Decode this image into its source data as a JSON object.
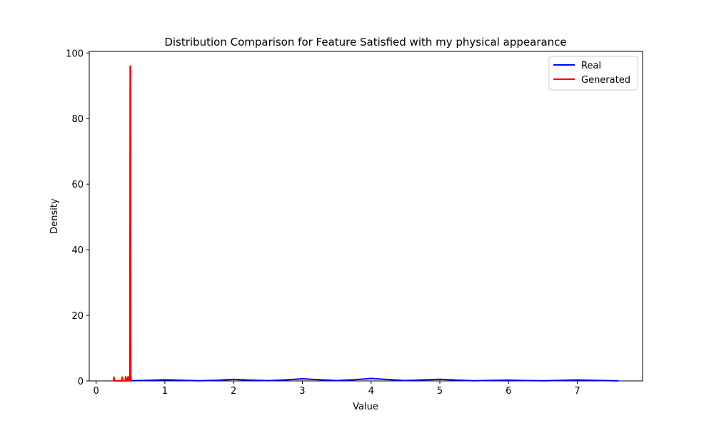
{
  "chart_data": {
    "type": "line",
    "title": "Distribution Comparison for Feature Satisfied with my physical appearance",
    "xlabel": "Value",
    "ylabel": "Density",
    "xlim": [
      -0.1,
      7.95
    ],
    "ylim": [
      0,
      100.5
    ],
    "xticks": [
      0,
      1,
      2,
      3,
      4,
      5,
      6,
      7
    ],
    "yticks": [
      0,
      20,
      40,
      60,
      80,
      100
    ],
    "grid": false,
    "legend_position": "top-right",
    "series": [
      {
        "name": "Real",
        "color": "#0000ff",
        "x": [
          0.5,
          0.75,
          1.0,
          1.25,
          1.5,
          1.75,
          2.0,
          2.25,
          2.5,
          2.75,
          3.0,
          3.25,
          3.5,
          3.75,
          4.0,
          4.25,
          4.5,
          4.75,
          5.0,
          5.25,
          5.5,
          5.75,
          6.0,
          6.25,
          6.5,
          6.75,
          7.0,
          7.25,
          7.6
        ],
        "y": [
          0.05,
          0.15,
          0.35,
          0.2,
          0.05,
          0.2,
          0.45,
          0.25,
          0.08,
          0.3,
          0.65,
          0.35,
          0.1,
          0.35,
          0.75,
          0.4,
          0.1,
          0.3,
          0.5,
          0.25,
          0.06,
          0.15,
          0.25,
          0.12,
          0.05,
          0.15,
          0.3,
          0.15,
          0.03
        ]
      },
      {
        "name": "Generated",
        "color": "#ff0000",
        "x": [
          0.25,
          0.26,
          0.27,
          0.28,
          0.37,
          0.38,
          0.39,
          0.4,
          0.42,
          0.43,
          0.44,
          0.45,
          0.46,
          0.47,
          0.48,
          0.49,
          0.495,
          0.5,
          0.505,
          0.51
        ],
        "y": [
          0.0,
          1.2,
          0.0,
          0.0,
          0.0,
          1.2,
          0.0,
          0.0,
          0.0,
          1.3,
          0.0,
          0.0,
          1.2,
          0.0,
          1.3,
          0.0,
          96.0,
          96.0,
          2.0,
          0.0
        ]
      }
    ]
  }
}
